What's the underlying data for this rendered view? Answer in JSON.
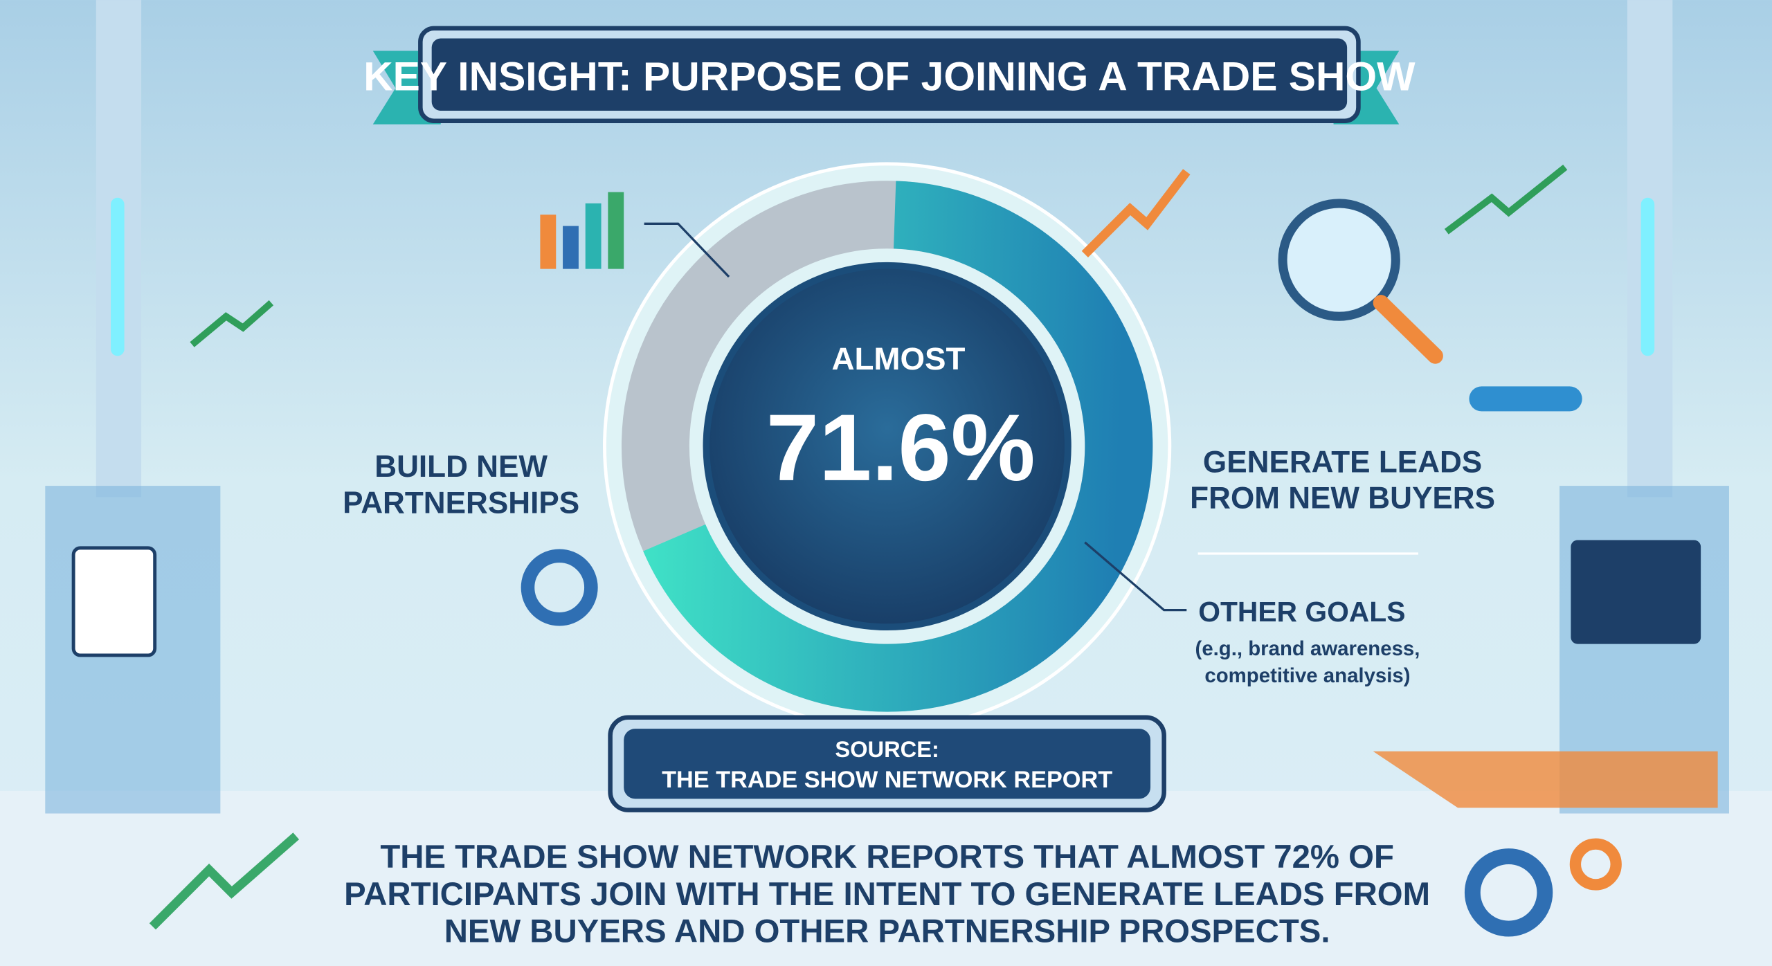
{
  "header": {
    "title": "KEY INSIGHT: PURPOSE OF JOINING A TRADE SHOW"
  },
  "center": {
    "label": "ALMOST",
    "value": "71.6%"
  },
  "segments": [
    {
      "lines": [
        "BUILD NEW",
        "PARTNERSHIPS"
      ]
    },
    {
      "lines": [
        "GENERATE LEADS",
        "FROM NEW BUYERS"
      ]
    },
    {
      "lines": [
        "OTHER GOALS"
      ],
      "note": [
        "(e.g., brand awareness,",
        "competitive analysis)"
      ]
    }
  ],
  "source": {
    "label": "SOURCE:",
    "name": "THE TRADE SHOW NETWORK REPORT"
  },
  "footer": {
    "lines": [
      "THE TRADE SHOW NETWORK REPORTS THAT ALMOST 72% OF",
      "PARTICIPANTS JOIN WITH THE INTENT TO GENERATE LEADS FROM",
      "NEW BUYERS AND OTHER PARTNERSHIP PROSPECTS."
    ]
  }
}
